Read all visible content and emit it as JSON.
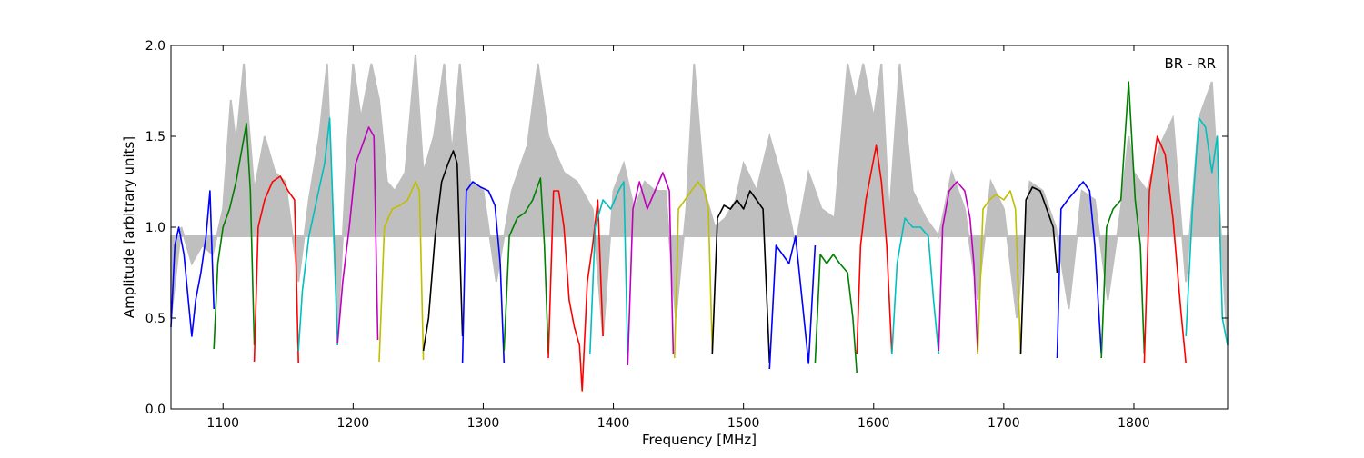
{
  "chart_data": {
    "type": "line",
    "annotation": "BR - RR",
    "xlabel": "Frequency [MHz]",
    "ylabel": "Amplitude [arbitrary units]",
    "xlim": [
      1060,
      1872
    ],
    "ylim": [
      0.0,
      2.0
    ],
    "xticks": [
      1100,
      1200,
      1300,
      1400,
      1500,
      1600,
      1700,
      1800
    ],
    "xtick_labels": [
      "1100",
      "1200",
      "1300",
      "1400",
      "1500",
      "1600",
      "1700",
      "1800"
    ],
    "yticks": [
      0.0,
      0.5,
      1.0,
      1.5,
      2.0
    ],
    "ytick_labels": [
      "0.0",
      "0.5",
      "1.0",
      "1.5",
      "2.0"
    ],
    "grid": false,
    "legend": "none",
    "background_series": {
      "color": "#bfbfbf",
      "x": [
        1060,
        1068,
        1076,
        1084,
        1092,
        1100,
        1106,
        1110,
        1116,
        1124,
        1132,
        1140,
        1148,
        1158,
        1166,
        1174,
        1180,
        1188,
        1196,
        1200,
        1206,
        1214,
        1220,
        1226,
        1232,
        1240,
        1248,
        1254,
        1262,
        1270,
        1276,
        1282,
        1290,
        1300,
        1310,
        1322,
        1334,
        1342,
        1350,
        1362,
        1372,
        1384,
        1392,
        1400,
        1408,
        1416,
        1424,
        1432,
        1440,
        1448,
        1456,
        1462,
        1470,
        1478,
        1486,
        1494,
        1500,
        1510,
        1520,
        1530,
        1540,
        1550,
        1560,
        1570,
        1580,
        1586,
        1592,
        1600,
        1606,
        1612,
        1620,
        1630,
        1640,
        1650,
        1660,
        1670,
        1680,
        1690,
        1700,
        1710,
        1720,
        1730,
        1740,
        1750,
        1760,
        1770,
        1780,
        1790,
        1796,
        1800,
        1810,
        1820,
        1830,
        1840,
        1850,
        1860,
        1872
      ],
      "y": [
        0.5,
        1.0,
        0.8,
        0.9,
        0.85,
        1.1,
        1.7,
        1.45,
        1.9,
        1.2,
        1.5,
        1.3,
        1.25,
        0.7,
        1.15,
        1.5,
        1.9,
        0.4,
        1.5,
        1.9,
        1.6,
        1.9,
        1.7,
        1.25,
        1.2,
        1.3,
        1.95,
        1.3,
        1.5,
        1.9,
        1.4,
        1.9,
        1.25,
        1.2,
        0.7,
        1.2,
        1.45,
        1.9,
        1.5,
        1.3,
        1.25,
        1.1,
        0.4,
        1.2,
        1.35,
        1.1,
        1.25,
        1.2,
        1.2,
        0.5,
        1.1,
        1.9,
        1.2,
        1.0,
        1.05,
        1.15,
        1.35,
        1.2,
        1.5,
        1.25,
        0.9,
        1.3,
        1.1,
        1.05,
        1.9,
        1.7,
        1.9,
        1.6,
        1.9,
        1.05,
        1.9,
        1.2,
        1.05,
        0.95,
        1.3,
        1.1,
        0.6,
        1.25,
        1.1,
        0.5,
        1.25,
        1.2,
        1.0,
        0.55,
        1.2,
        1.15,
        0.6,
        1.1,
        1.5,
        1.3,
        1.2,
        1.45,
        1.6,
        0.7,
        1.6,
        1.8,
        0.35
      ]
    },
    "series": [
      {
        "color": "#0000ff",
        "x": [
          1060,
          1063,
          1066,
          1070,
          1074,
          1076,
          1079,
          1083,
          1087,
          1090,
          1093
        ],
        "y": [
          0.45,
          0.9,
          1.0,
          0.85,
          0.55,
          0.4,
          0.6,
          0.75,
          0.95,
          1.2,
          0.55
        ]
      },
      {
        "color": "#008000",
        "x": [
          1093,
          1096,
          1100,
          1105,
          1110,
          1115,
          1118,
          1121,
          1124
        ],
        "y": [
          0.33,
          0.8,
          1.0,
          1.1,
          1.25,
          1.45,
          1.57,
          1.2,
          0.35
        ]
      },
      {
        "color": "#ff0000",
        "x": [
          1124,
          1127,
          1132,
          1138,
          1144,
          1150,
          1155,
          1158
        ],
        "y": [
          0.26,
          1.0,
          1.15,
          1.25,
          1.28,
          1.2,
          1.15,
          0.25
        ]
      },
      {
        "color": "#00bfbf",
        "x": [
          1158,
          1161,
          1166,
          1172,
          1178,
          1182,
          1185,
          1188
        ],
        "y": [
          0.32,
          0.65,
          0.95,
          1.15,
          1.35,
          1.6,
          1.0,
          0.35
        ]
      },
      {
        "color": "#bf00bf",
        "x": [
          1188,
          1192,
          1197,
          1202,
          1207,
          1212,
          1216,
          1219
        ],
        "y": [
          0.36,
          0.7,
          1.0,
          1.35,
          1.45,
          1.55,
          1.5,
          0.38
        ]
      },
      {
        "color": "#bfbf00",
        "x": [
          1220,
          1224,
          1230,
          1236,
          1242,
          1248,
          1251,
          1254
        ],
        "y": [
          0.26,
          1.0,
          1.1,
          1.12,
          1.15,
          1.25,
          1.2,
          0.27
        ]
      },
      {
        "color": "#000000",
        "x": [
          1254,
          1258,
          1263,
          1268,
          1273,
          1277,
          1280,
          1284
        ],
        "y": [
          0.32,
          0.5,
          0.95,
          1.25,
          1.35,
          1.42,
          1.35,
          0.4
        ]
      },
      {
        "color": "#0000ff",
        "x": [
          1284,
          1287,
          1292,
          1298,
          1304,
          1309,
          1313,
          1316
        ],
        "y": [
          0.25,
          1.2,
          1.25,
          1.22,
          1.2,
          1.12,
          0.8,
          0.25
        ]
      },
      {
        "color": "#008000",
        "x": [
          1316,
          1320,
          1326,
          1332,
          1338,
          1344,
          1347,
          1350
        ],
        "y": [
          0.32,
          0.95,
          1.05,
          1.08,
          1.15,
          1.27,
          0.9,
          0.3
        ]
      },
      {
        "color": "#ff0000",
        "x": [
          1350,
          1354,
          1358,
          1362,
          1366,
          1370,
          1374,
          1376,
          1380,
          1384,
          1388,
          1392
        ],
        "y": [
          0.28,
          1.2,
          1.2,
          1.0,
          0.6,
          0.45,
          0.35,
          0.1,
          0.7,
          0.9,
          1.15,
          0.4
        ]
      },
      {
        "color": "#00bfbf",
        "x": [
          1382,
          1386,
          1392,
          1398,
          1404,
          1408,
          1411
        ],
        "y": [
          0.3,
          1.0,
          1.15,
          1.1,
          1.2,
          1.25,
          0.3
        ]
      },
      {
        "color": "#bf00bf",
        "x": [
          1411,
          1415,
          1420,
          1426,
          1432,
          1438,
          1443,
          1446
        ],
        "y": [
          0.24,
          1.1,
          1.25,
          1.1,
          1.2,
          1.3,
          1.2,
          0.3
        ]
      },
      {
        "color": "#bfbf00",
        "x": [
          1447,
          1450,
          1455,
          1460,
          1465,
          1470,
          1473,
          1476
        ],
        "y": [
          0.28,
          1.1,
          1.15,
          1.2,
          1.25,
          1.2,
          1.1,
          0.32
        ]
      },
      {
        "color": "#000000",
        "x": [
          1476,
          1480,
          1485,
          1490,
          1495,
          1500,
          1505,
          1510,
          1515,
          1520
        ],
        "y": [
          0.3,
          1.05,
          1.12,
          1.1,
          1.15,
          1.1,
          1.2,
          1.15,
          1.1,
          0.25
        ]
      },
      {
        "color": "#0000ff",
        "x": [
          1520,
          1525,
          1530,
          1535,
          1540,
          1545,
          1550,
          1555
        ],
        "y": [
          0.22,
          0.9,
          0.85,
          0.8,
          0.95,
          0.6,
          0.25,
          0.9
        ]
      },
      {
        "color": "#008000",
        "x": [
          1555,
          1559,
          1564,
          1569,
          1574,
          1580,
          1584,
          1587
        ],
        "y": [
          0.25,
          0.85,
          0.8,
          0.85,
          0.8,
          0.75,
          0.5,
          0.2
        ]
      },
      {
        "color": "#ff0000",
        "x": [
          1587,
          1590,
          1594,
          1598,
          1602,
          1606,
          1610,
          1614
        ],
        "y": [
          0.3,
          0.9,
          1.15,
          1.3,
          1.45,
          1.25,
          0.9,
          0.3
        ]
      },
      {
        "color": "#00bfbf",
        "x": [
          1614,
          1618,
          1624,
          1630,
          1636,
          1642,
          1646,
          1650
        ],
        "y": [
          0.3,
          0.8,
          1.05,
          1.0,
          1.0,
          0.95,
          0.6,
          0.3
        ]
      },
      {
        "color": "#bf00bf",
        "x": [
          1650,
          1653,
          1658,
          1664,
          1670,
          1674,
          1677,
          1680
        ],
        "y": [
          0.32,
          1.0,
          1.2,
          1.25,
          1.2,
          1.05,
          0.8,
          0.3
        ]
      },
      {
        "color": "#bfbf00",
        "x": [
          1680,
          1684,
          1689,
          1694,
          1700,
          1705,
          1709,
          1713
        ],
        "y": [
          0.3,
          1.1,
          1.15,
          1.18,
          1.15,
          1.2,
          1.1,
          0.3
        ]
      },
      {
        "color": "#000000",
        "x": [
          1713,
          1717,
          1722,
          1728,
          1733,
          1738,
          1741
        ],
        "y": [
          0.3,
          1.15,
          1.22,
          1.2,
          1.1,
          1.0,
          0.75
        ]
      },
      {
        "color": "#0000ff",
        "x": [
          1741,
          1744,
          1749,
          1755,
          1761,
          1766,
          1770,
          1775
        ],
        "y": [
          0.28,
          1.1,
          1.15,
          1.2,
          1.25,
          1.2,
          0.9,
          0.3
        ]
      },
      {
        "color": "#008000",
        "x": [
          1775,
          1779,
          1784,
          1790,
          1796,
          1801,
          1805,
          1808
        ],
        "y": [
          0.28,
          1.0,
          1.1,
          1.15,
          1.8,
          1.15,
          0.9,
          0.3
        ]
      },
      {
        "color": "#ff0000",
        "x": [
          1808,
          1812,
          1818,
          1824,
          1830,
          1836,
          1840
        ],
        "y": [
          0.25,
          1.2,
          1.5,
          1.4,
          1.05,
          0.55,
          0.25
        ]
      },
      {
        "color": "#00bfbf",
        "x": [
          1840,
          1845,
          1850,
          1855,
          1860,
          1864,
          1868,
          1872
        ],
        "y": [
          0.4,
          1.1,
          1.6,
          1.55,
          1.3,
          1.5,
          0.5,
          0.35
        ]
      }
    ]
  }
}
